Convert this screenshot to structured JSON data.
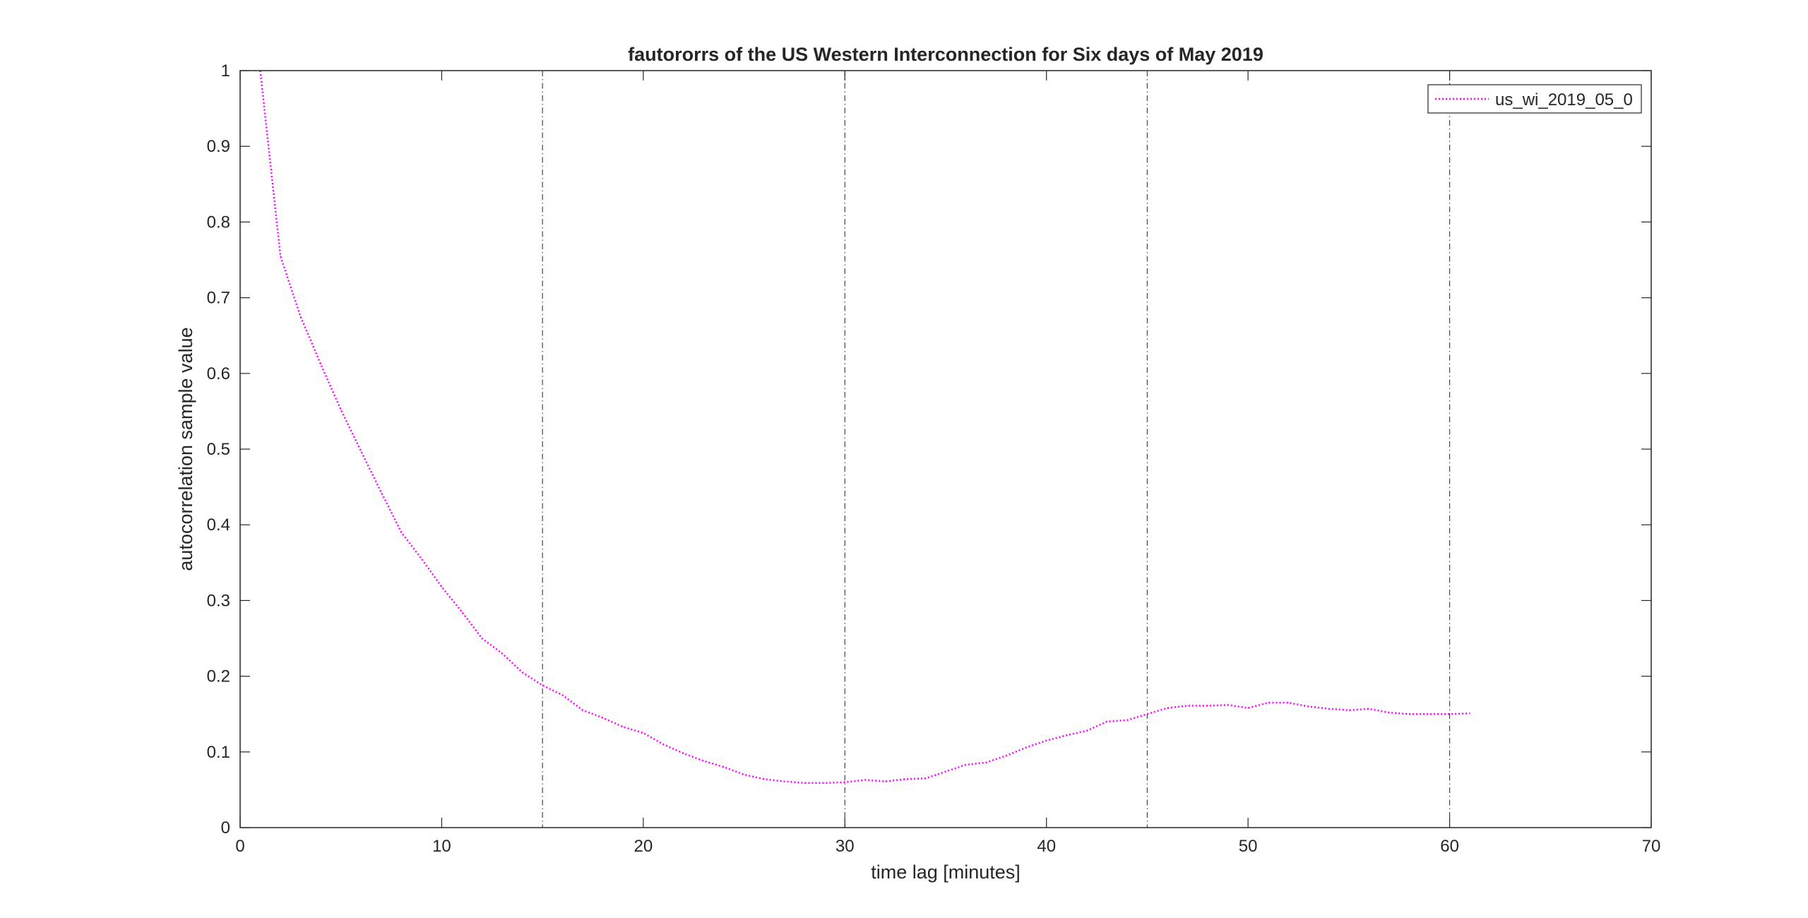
{
  "chart_data": {
    "type": "line",
    "title": "fautororrs of the US Western Interconnection for Six days of May 2019",
    "xlabel": "time lag [minutes]",
    "ylabel": "autocorrelation sample value",
    "xlim": [
      0,
      70
    ],
    "ylim": [
      0,
      1
    ],
    "xticks": [
      0,
      10,
      20,
      30,
      40,
      50,
      60,
      70
    ],
    "yticks": [
      0,
      0.1,
      0.2,
      0.3,
      0.4,
      0.5,
      0.6,
      0.7,
      0.8,
      0.9,
      1
    ],
    "xtick_labels": [
      "0",
      "10",
      "20",
      "30",
      "40",
      "50",
      "60",
      "70"
    ],
    "ytick_labels": [
      "0",
      "0.1",
      "0.2",
      "0.3",
      "0.4",
      "0.5",
      "0.6",
      "0.7",
      "0.8",
      "0.9",
      "1"
    ],
    "grid": false,
    "vertical_reference_lines": [
      15,
      30,
      45,
      60
    ],
    "legend_position": "top-right",
    "series": [
      {
        "name": "us_wi_2019_05_0",
        "color": "#ff00ff",
        "line_style": "dotted",
        "x": [
          1,
          2,
          3,
          4,
          5,
          6,
          7,
          8,
          9,
          10,
          11,
          12,
          13,
          14,
          15,
          16,
          17,
          18,
          19,
          20,
          21,
          22,
          23,
          24,
          25,
          26,
          27,
          28,
          29,
          30,
          31,
          32,
          33,
          34,
          35,
          36,
          37,
          38,
          39,
          40,
          41,
          42,
          43,
          44,
          45,
          46,
          47,
          48,
          49,
          50,
          51,
          52,
          53,
          54,
          55,
          56,
          57,
          58,
          59,
          60,
          61
        ],
        "y": [
          1.0,
          0.755,
          0.675,
          0.612,
          0.552,
          0.497,
          0.443,
          0.39,
          0.355,
          0.318,
          0.285,
          0.25,
          0.23,
          0.205,
          0.188,
          0.175,
          0.155,
          0.145,
          0.133,
          0.125,
          0.11,
          0.098,
          0.088,
          0.08,
          0.07,
          0.064,
          0.061,
          0.059,
          0.059,
          0.06,
          0.063,
          0.061,
          0.064,
          0.065,
          0.074,
          0.083,
          0.086,
          0.095,
          0.106,
          0.115,
          0.122,
          0.128,
          0.14,
          0.142,
          0.15,
          0.158,
          0.161,
          0.161,
          0.162,
          0.158,
          0.165,
          0.165,
          0.16,
          0.157,
          0.155,
          0.157,
          0.152,
          0.15,
          0.15,
          0.15,
          0.151
        ]
      }
    ]
  }
}
